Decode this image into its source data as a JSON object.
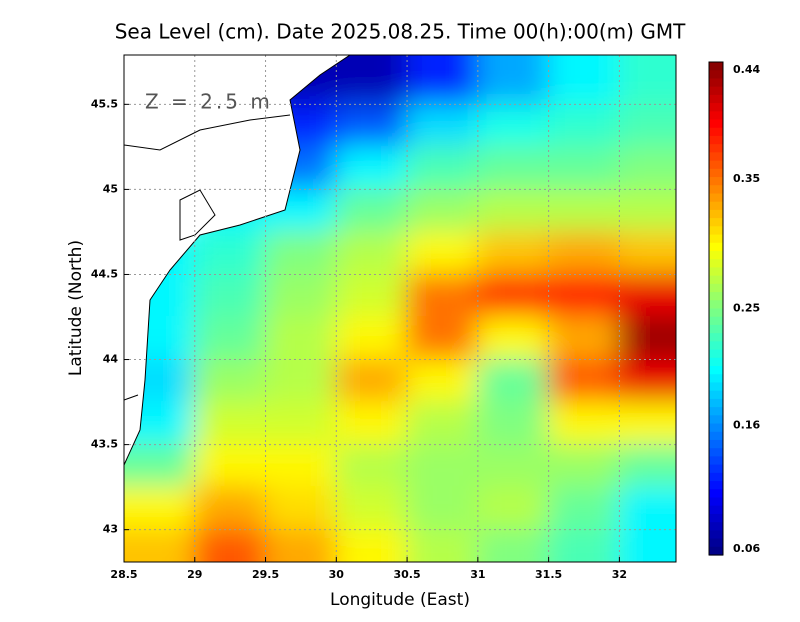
{
  "chart_data": {
    "type": "heatmap",
    "title": "Sea Level (cm). Date 2025.08.25. Time 00(h):00(m) GMT",
    "annotation": "Z = 2.5 m",
    "x_label": "Longitude (East)",
    "y_label": "Latitude (North)",
    "xlim": [
      28.5,
      32.4
    ],
    "ylim": [
      42.81,
      45.79
    ],
    "xticks": [
      28.5,
      29,
      29.5,
      30,
      30.5,
      31,
      31.5,
      32
    ],
    "yticks": [
      43,
      43.5,
      44,
      44.5,
      45,
      45.5
    ],
    "grid": true,
    "colormap": "jet",
    "clim": [
      0.06,
      0.44
    ],
    "cticks": [
      0.06,
      0.16,
      0.25,
      0.35,
      0.44
    ],
    "x": [
      28.75,
      29.25,
      29.75,
      30.25,
      30.75,
      31.25,
      31.75,
      32.25
    ],
    "y": [
      45.625,
      45.375,
      45.125,
      44.875,
      44.625,
      44.375,
      44.125,
      43.875,
      43.625,
      43.375,
      43.125,
      42.875
    ],
    "values": [
      [
        null,
        null,
        0.08,
        0.08,
        0.12,
        0.17,
        0.2,
        0.22
      ],
      [
        null,
        null,
        0.12,
        0.14,
        0.19,
        0.21,
        0.22,
        0.23
      ],
      [
        null,
        null,
        0.15,
        0.2,
        0.23,
        0.24,
        0.24,
        0.25
      ],
      [
        null,
        0.2,
        0.2,
        0.24,
        0.26,
        0.27,
        0.27,
        0.27
      ],
      [
        0.2,
        0.22,
        0.25,
        0.27,
        0.3,
        0.32,
        0.33,
        0.32
      ],
      [
        0.2,
        0.23,
        0.26,
        0.28,
        0.35,
        0.38,
        0.39,
        0.4
      ],
      [
        0.2,
        0.24,
        0.27,
        0.3,
        0.35,
        0.3,
        0.33,
        0.43
      ],
      [
        0.19,
        0.26,
        0.27,
        0.33,
        0.3,
        0.24,
        0.36,
        0.4
      ],
      [
        0.2,
        0.28,
        0.28,
        0.3,
        0.27,
        0.25,
        0.3,
        0.3
      ],
      [
        0.24,
        0.3,
        0.3,
        0.27,
        0.26,
        0.26,
        0.26,
        0.24
      ],
      [
        0.3,
        0.33,
        0.31,
        0.28,
        0.26,
        0.27,
        0.24,
        0.2
      ],
      [
        0.32,
        0.36,
        0.33,
        0.3,
        0.27,
        0.25,
        0.23,
        0.2
      ]
    ]
  }
}
